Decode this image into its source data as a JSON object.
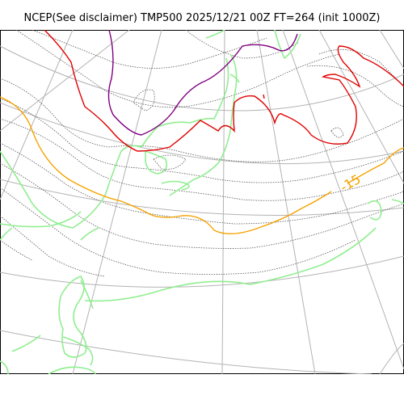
{
  "title": "NCEP(See disclaimer) TMP500 2025/12/21 00Z FT=264 (init 1000Z)",
  "labels": {
    "isotherm_label": "-15"
  },
  "colors": {
    "grid": "#b3b3b3",
    "coast": "#90ee90",
    "isotherm_orange": "#f5a300",
    "isotherm_red": "#e00000",
    "isotherm_purple": "#800080",
    "minor_contour": "#555555"
  }
}
